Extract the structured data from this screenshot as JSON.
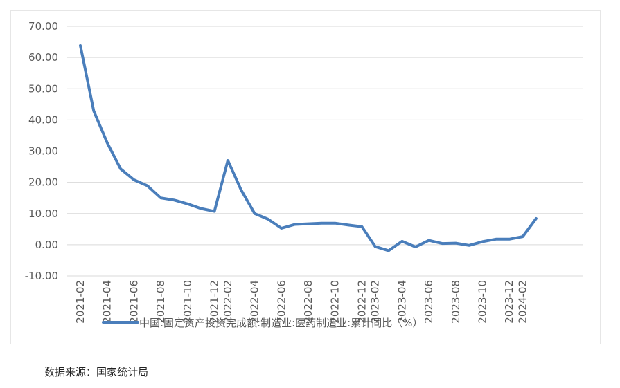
{
  "chart_data": {
    "type": "line",
    "ylim": [
      -10,
      70
    ],
    "yticks": [
      "70.00",
      "60.00",
      "50.00",
      "40.00",
      "30.00",
      "20.00",
      "10.00",
      "0.00",
      "-10.00"
    ],
    "ytick_values": [
      70,
      60,
      50,
      40,
      30,
      20,
      10,
      0,
      -10
    ],
    "x": [
      "2021-02",
      "2021-03",
      "2021-04",
      "2021-05",
      "2021-06",
      "2021-07",
      "2021-08",
      "2021-09",
      "2021-10",
      "2021-11",
      "2021-12",
      "2022-02",
      "2022-03",
      "2022-04",
      "2022-05",
      "2022-06",
      "2022-07",
      "2022-08",
      "2022-09",
      "2022-10",
      "2022-11",
      "2022-12",
      "2023-02",
      "2023-03",
      "2023-04",
      "2023-05",
      "2023-06",
      "2023-07",
      "2023-08",
      "2023-09",
      "2023-10",
      "2023-11",
      "2023-12",
      "2024-02",
      "2024-03"
    ],
    "xticks": [
      "2021-02",
      "2021-04",
      "2021-06",
      "2021-08",
      "2021-10",
      "2021-12",
      "2022-02",
      "2022-04",
      "2022-06",
      "2022-08",
      "2022-10",
      "2022-12",
      "2023-02",
      "2023-04",
      "2023-06",
      "2023-08",
      "2023-10",
      "2023-12",
      "2024-02"
    ],
    "series": [
      {
        "name": "中国:固定资产投资完成额:制造业:医药制造业:累计同比（%）",
        "color": "#4a7ebb",
        "values": [
          63.8,
          42.9,
          32.7,
          24.3,
          20.8,
          18.9,
          15.0,
          14.3,
          13.1,
          11.6,
          10.7,
          27.0,
          17.5,
          10.0,
          8.2,
          5.3,
          6.5,
          6.7,
          6.9,
          6.9,
          6.3,
          5.8,
          -0.6,
          -1.9,
          1.1,
          -0.7,
          1.4,
          0.4,
          0.5,
          -0.2,
          1.0,
          1.8,
          1.8,
          2.6,
          8.4
        ]
      }
    ],
    "grid": true,
    "legend": "bottom"
  },
  "source_note": "数据来源：国家统计局"
}
